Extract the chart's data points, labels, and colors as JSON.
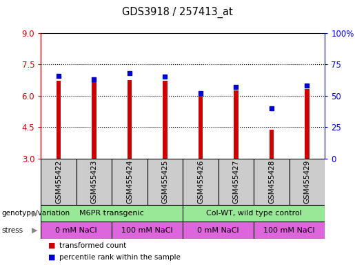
{
  "title": "GDS3918 / 257413_at",
  "samples": [
    "GSM455422",
    "GSM455423",
    "GSM455424",
    "GSM455425",
    "GSM455426",
    "GSM455427",
    "GSM455428",
    "GSM455429"
  ],
  "red_values": [
    6.72,
    6.65,
    6.76,
    6.72,
    6.03,
    6.27,
    4.38,
    6.32
  ],
  "blue_values": [
    66,
    63,
    68,
    65,
    52,
    57,
    40,
    58
  ],
  "ylim_left": [
    3,
    9
  ],
  "ylim_right": [
    0,
    100
  ],
  "yticks_left": [
    3,
    4.5,
    6,
    7.5,
    9
  ],
  "yticks_right": [
    0,
    25,
    50,
    75,
    100
  ],
  "ytick_labels_right": [
    "0",
    "25",
    "50",
    "75",
    "100%"
  ],
  "bar_bottom": 3,
  "bar_color": "#cc0000",
  "dot_color": "#0000cc",
  "left_axis_color": "#cc0000",
  "right_axis_color": "#0000cc",
  "bar_width": 0.12,
  "dot_size": 5,
  "genotype_groups": [
    {
      "label": "M6PR transgenic",
      "start": 0,
      "end": 4,
      "color": "#98e898"
    },
    {
      "label": "Col-WT, wild type control",
      "start": 4,
      "end": 8,
      "color": "#98e898"
    }
  ],
  "stress_groups": [
    {
      "label": "0 mM NaCl",
      "start": 0,
      "end": 2,
      "color": "#dd66dd"
    },
    {
      "label": "100 mM NaCl",
      "start": 2,
      "end": 4,
      "color": "#dd66dd"
    },
    {
      "label": "0 mM NaCl",
      "start": 4,
      "end": 6,
      "color": "#dd66dd"
    },
    {
      "label": "100 mM NaCl",
      "start": 6,
      "end": 8,
      "color": "#dd66dd"
    }
  ],
  "sample_box_color": "#cccccc",
  "legend_red_label": "transformed count",
  "legend_blue_label": "percentile rank within the sample",
  "geno_label": "genotype/variation",
  "stress_label": "stress"
}
